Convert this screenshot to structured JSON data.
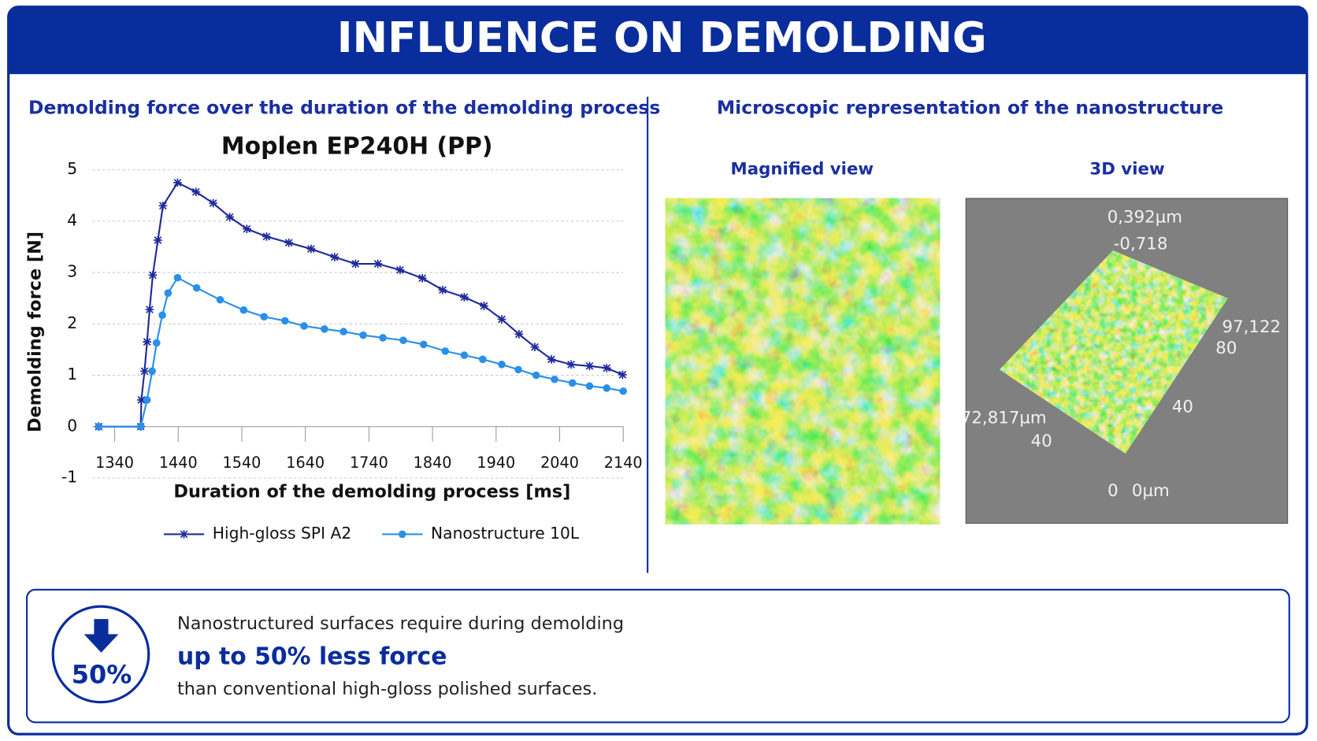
{
  "header": {
    "title": "INFLUENCE ON DEMOLDING"
  },
  "left_panel": {
    "heading": "Demolding force over the duration of the demolding process"
  },
  "chart_data": {
    "type": "line",
    "title": "Moplen EP240H (PP)",
    "x_label": "Duration of the demolding process [ms]",
    "y_label": "Demolding force [N]",
    "xlim": [
      1305,
      2140
    ],
    "ylim": [
      -1,
      5
    ],
    "xticks": [
      1340,
      1440,
      1540,
      1640,
      1740,
      1840,
      1940,
      2040,
      2140
    ],
    "yticks": [
      -1,
      0,
      1,
      2,
      3,
      4,
      5
    ],
    "grid": true,
    "legend_position": "bottom",
    "series": [
      {
        "name": "High-gloss SPI A2",
        "color": "#1f2a9c",
        "marker": "star",
        "x": [
          1315,
          1381,
          1382,
          1387,
          1391,
          1395,
          1400,
          1408,
          1416,
          1439,
          1468,
          1495,
          1521,
          1548,
          1579,
          1614,
          1649,
          1686,
          1719,
          1754,
          1789,
          1824,
          1856,
          1890,
          1921,
          1949,
          1976,
          2001,
          2027,
          2058,
          2087,
          2114,
          2139
        ],
        "values": [
          0,
          0,
          0.52,
          1.08,
          1.65,
          2.28,
          2.95,
          3.63,
          4.3,
          4.75,
          4.57,
          4.35,
          4.08,
          3.85,
          3.7,
          3.58,
          3.46,
          3.3,
          3.17,
          3.17,
          3.05,
          2.89,
          2.66,
          2.52,
          2.35,
          2.09,
          1.8,
          1.55,
          1.31,
          1.21,
          1.18,
          1.14,
          1.01
        ]
      },
      {
        "name": "Nanostructure 10L",
        "color": "#2a8fe8",
        "marker": "circle",
        "x": [
          1315,
          1381,
          1391,
          1399,
          1406,
          1415,
          1424,
          1439,
          1469,
          1506,
          1543,
          1575,
          1608,
          1638,
          1670,
          1700,
          1731,
          1762,
          1794,
          1826,
          1860,
          1890,
          1919,
          1949,
          1975,
          2003,
          2032,
          2060,
          2087,
          2114,
          2140
        ],
        "values": [
          0,
          0,
          0.52,
          1.08,
          1.63,
          2.17,
          2.6,
          2.9,
          2.7,
          2.47,
          2.27,
          2.14,
          2.06,
          1.96,
          1.9,
          1.85,
          1.78,
          1.73,
          1.68,
          1.6,
          1.47,
          1.39,
          1.31,
          1.21,
          1.11,
          1.0,
          0.92,
          0.85,
          0.79,
          0.75,
          0.69
        ]
      }
    ]
  },
  "right_panel": {
    "heading": "Microscopic representation of the nanostructure",
    "magnified_view": {
      "label": "Magnified view"
    },
    "view_3d": {
      "label": "3D view",
      "axis_labels": [
        "0,392µm",
        "-0,718",
        "97,122",
        "80",
        "72,817µm",
        "40",
        "40",
        "0",
        "0µm"
      ]
    }
  },
  "callout": {
    "badge": "50%",
    "line1": "Nanostructured surfaces require during demolding",
    "highlight": "up to 50% less force",
    "line3": "than conventional high-gloss polished surfaces."
  }
}
